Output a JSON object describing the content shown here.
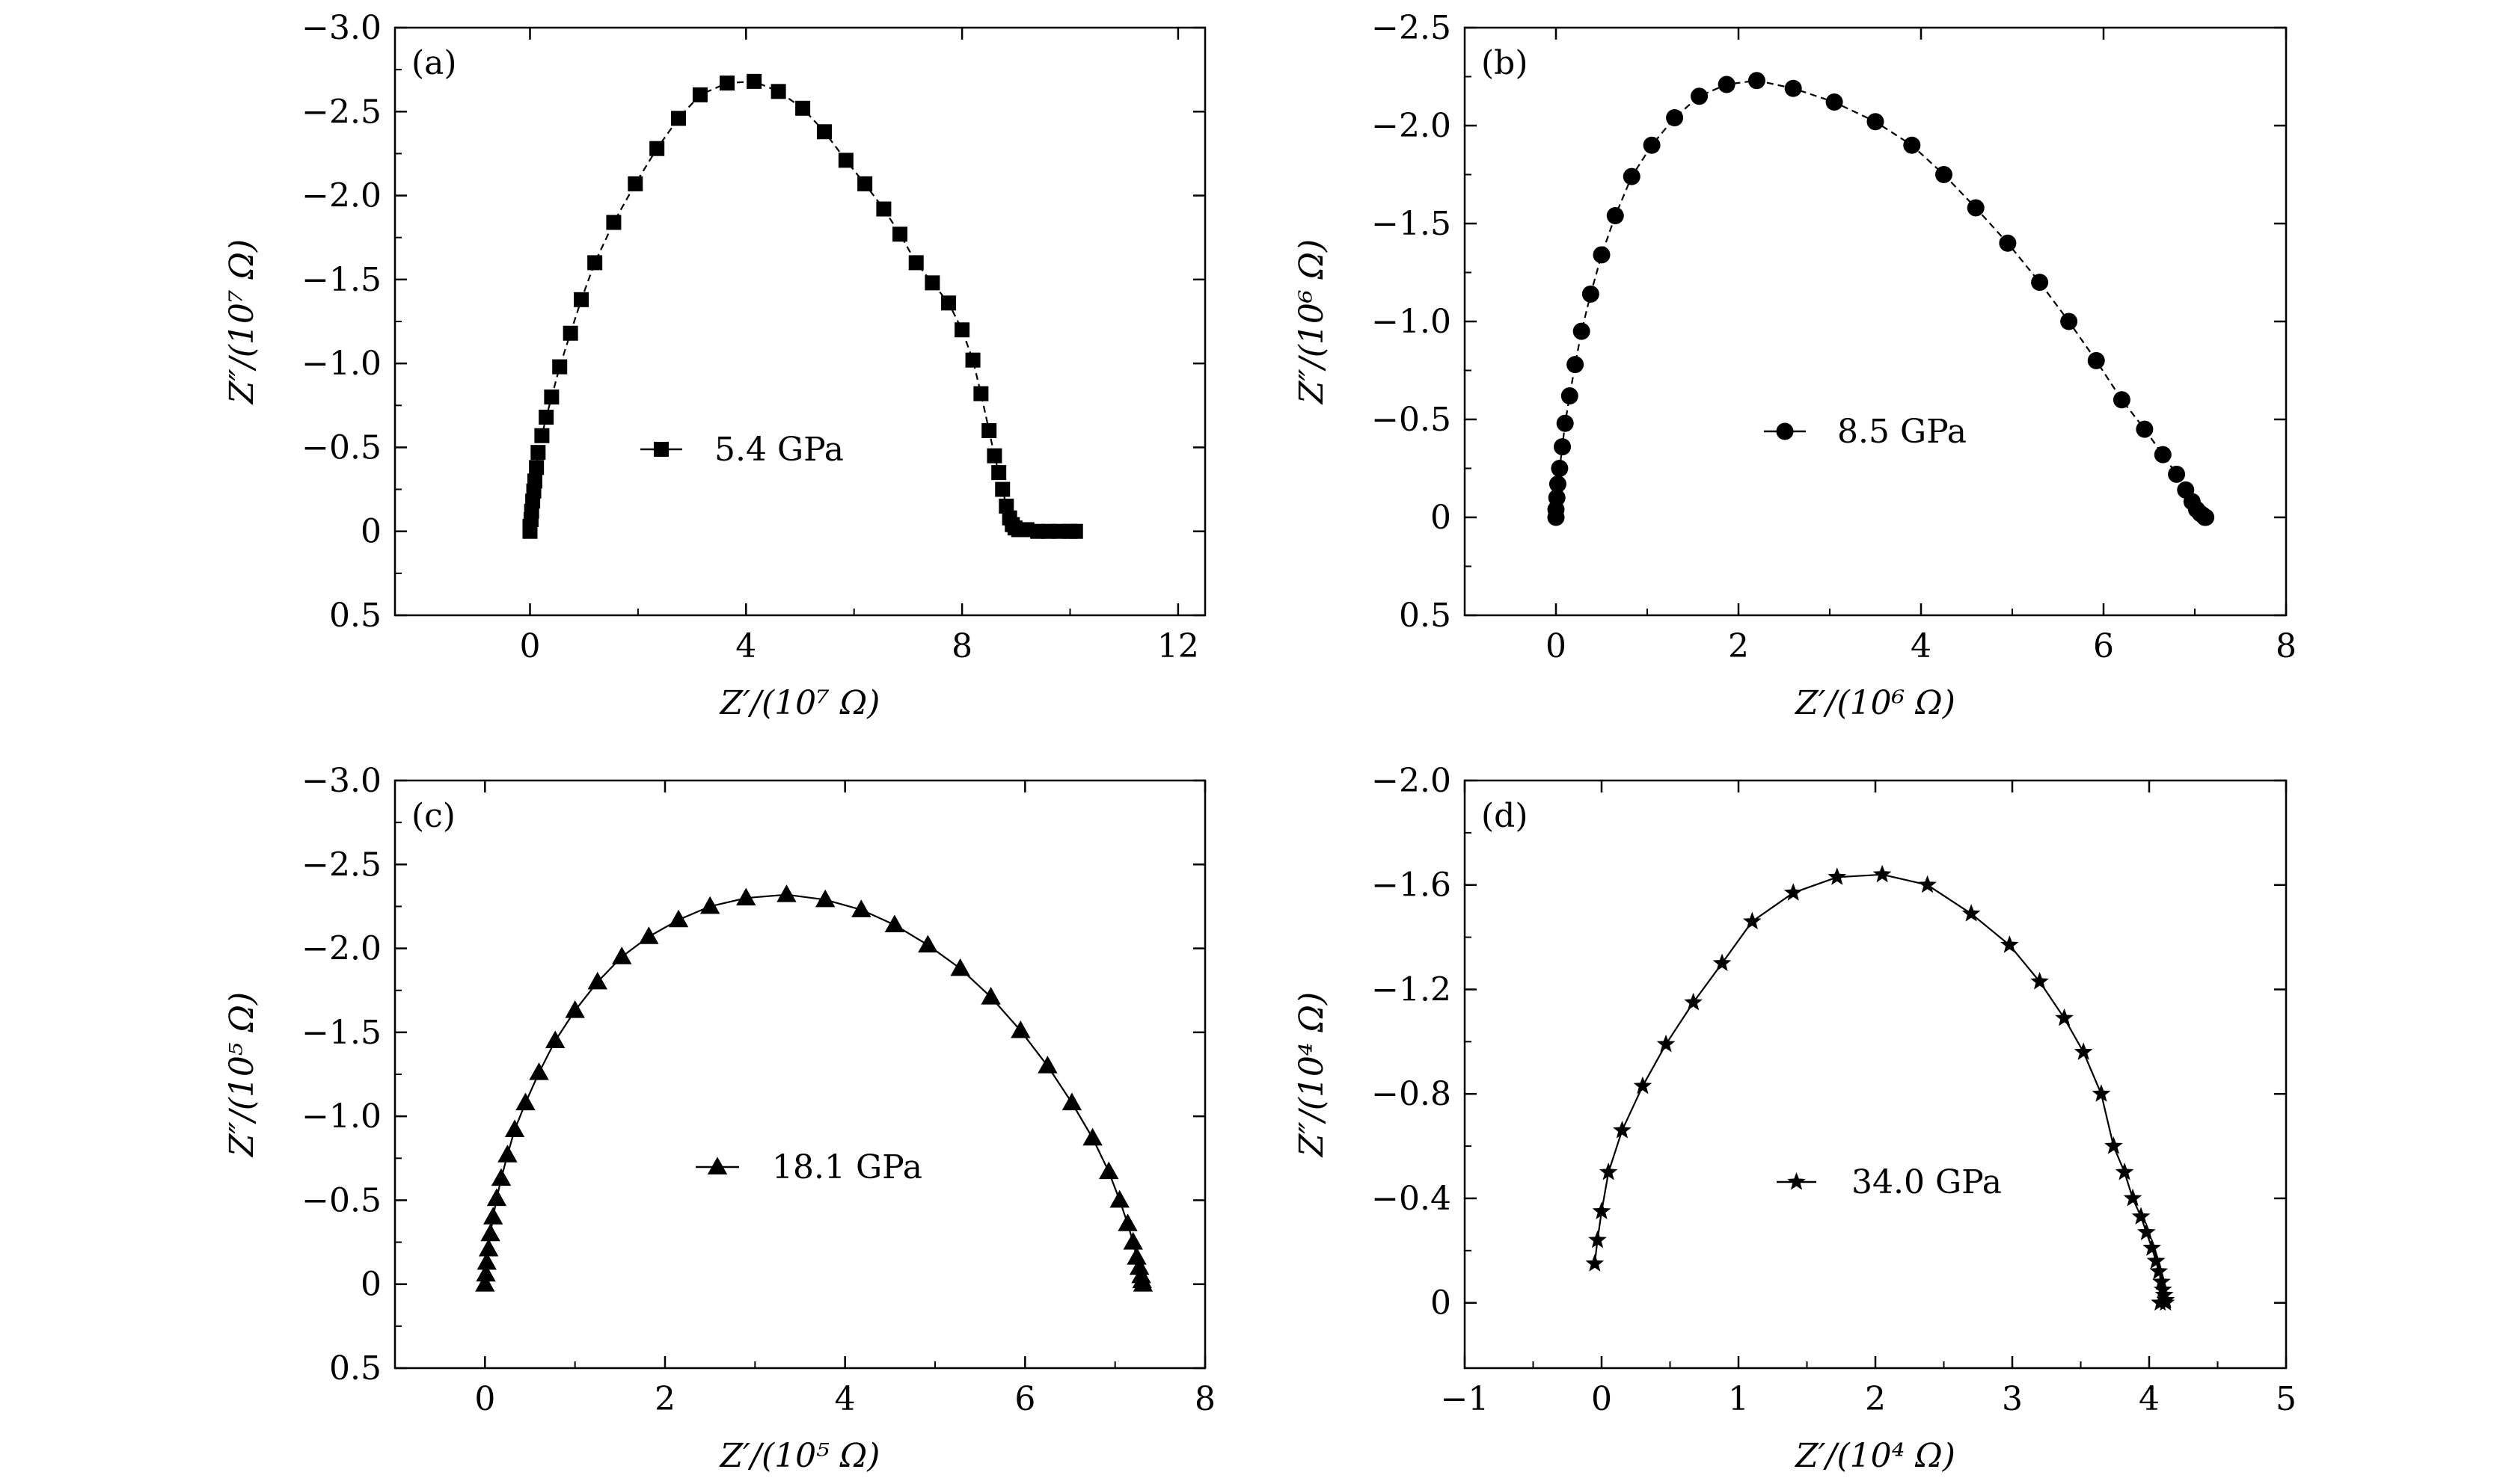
{
  "chart_data": [
    {
      "type": "scatter",
      "panel_label": "(a)",
      "marker": "square",
      "line_style": "dashed",
      "legend_position": "center",
      "xlabel": "Z′/(10⁷ Ω)",
      "ylabel": "Z″/(10⁷ Ω)",
      "xlim": [
        -2.5,
        12.5
      ],
      "ylim": [
        0.5,
        -3.0
      ],
      "xticks": [
        0,
        4,
        8,
        12
      ],
      "yticks": [
        -3.0,
        -2.5,
        -2.0,
        -1.5,
        -1.0,
        -0.5,
        0,
        0.5
      ],
      "xtick_labels": [
        "0",
        "4",
        "8",
        "12"
      ],
      "ytick_labels": [
        "−3.0",
        "−2.5",
        "−2.0",
        "−1.5",
        "−1.0",
        "−0.5",
        "0",
        "0.5"
      ],
      "series": [
        {
          "name": "5.4 GPa",
          "x": [
            0.0,
            0.0,
            0.02,
            0.03,
            0.05,
            0.07,
            0.09,
            0.12,
            0.15,
            0.22,
            0.3,
            0.4,
            0.55,
            0.75,
            0.95,
            1.2,
            1.55,
            1.95,
            2.35,
            2.75,
            3.15,
            3.65,
            4.15,
            4.6,
            5.05,
            5.45,
            5.85,
            6.2,
            6.55,
            6.85,
            7.15,
            7.45,
            7.75,
            8.0,
            8.2,
            8.35,
            8.5,
            8.6,
            8.68,
            8.75,
            8.82,
            8.88,
            8.93,
            8.98,
            9.05,
            9.2,
            9.4,
            9.6,
            9.8,
            10.0,
            10.1
          ],
          "y": [
            0.0,
            -0.03,
            -0.07,
            -0.12,
            -0.18,
            -0.24,
            -0.3,
            -0.38,
            -0.47,
            -0.57,
            -0.68,
            -0.8,
            -0.98,
            -1.18,
            -1.38,
            -1.6,
            -1.84,
            -2.07,
            -2.28,
            -2.46,
            -2.6,
            -2.67,
            -2.68,
            -2.62,
            -2.52,
            -2.38,
            -2.21,
            -2.07,
            -1.92,
            -1.77,
            -1.6,
            -1.48,
            -1.36,
            -1.2,
            -1.02,
            -0.82,
            -0.6,
            -0.45,
            -0.35,
            -0.25,
            -0.15,
            -0.08,
            -0.04,
            -0.02,
            -0.01,
            -0.01,
            0.0,
            0.0,
            0.0,
            0.0,
            0.0
          ]
        }
      ]
    },
    {
      "type": "scatter",
      "panel_label": "(b)",
      "marker": "circle",
      "line_style": "dashed",
      "legend_position": "center",
      "xlabel": "Z′/(10⁶ Ω)",
      "ylabel": "Z″/(10⁶ Ω)",
      "xlim": [
        -1.0,
        8.0
      ],
      "ylim": [
        0.5,
        -2.5
      ],
      "xticks": [
        0,
        2,
        4,
        6,
        8
      ],
      "yticks": [
        -2.5,
        -2.0,
        -1.5,
        -1.0,
        -0.5,
        0,
        0.5
      ],
      "xtick_labels": [
        "0",
        "2",
        "4",
        "6",
        "8"
      ],
      "ytick_labels": [
        "−2.5",
        "−2.0",
        "−1.5",
        "−1.0",
        "−0.5",
        "0",
        "0.5"
      ],
      "series": [
        {
          "name": "8.5 GPa",
          "x": [
            0.0,
            0.0,
            0.01,
            0.02,
            0.04,
            0.07,
            0.1,
            0.15,
            0.21,
            0.28,
            0.38,
            0.5,
            0.65,
            0.83,
            1.05,
            1.3,
            1.57,
            1.87,
            2.2,
            2.6,
            3.05,
            3.5,
            3.9,
            4.25,
            4.6,
            4.95,
            5.3,
            5.62,
            5.92,
            6.2,
            6.45,
            6.65,
            6.8,
            6.9,
            6.97,
            7.02,
            7.06,
            7.09,
            7.11,
            7.12
          ],
          "y": [
            0.0,
            -0.04,
            -0.1,
            -0.17,
            -0.25,
            -0.36,
            -0.48,
            -0.62,
            -0.78,
            -0.95,
            -1.14,
            -1.34,
            -1.54,
            -1.74,
            -1.9,
            -2.04,
            -2.15,
            -2.21,
            -2.23,
            -2.19,
            -2.12,
            -2.02,
            -1.9,
            -1.75,
            -1.58,
            -1.4,
            -1.2,
            -1.0,
            -0.8,
            -0.6,
            -0.45,
            -0.32,
            -0.22,
            -0.14,
            -0.08,
            -0.04,
            -0.02,
            -0.01,
            0.0,
            0.0
          ]
        }
      ]
    },
    {
      "type": "scatter",
      "panel_label": "(c)",
      "marker": "triangle",
      "line_style": "solid",
      "legend_position": "center",
      "xlabel": "Z′/(10⁵ Ω)",
      "ylabel": "Z″/(10⁵ Ω)",
      "xlim": [
        -1.0,
        8.0
      ],
      "ylim": [
        0.5,
        -3.0
      ],
      "xticks": [
        0,
        2,
        4,
        6,
        8
      ],
      "yticks": [
        -3.0,
        -2.5,
        -2.0,
        -1.5,
        -1.0,
        -0.5,
        0,
        0.5
      ],
      "xtick_labels": [
        "0",
        "2",
        "4",
        "6",
        "8"
      ],
      "ytick_labels": [
        "−3.0",
        "−2.5",
        "−2.0",
        "−1.5",
        "−1.0",
        "−0.5",
        "0",
        "0.5"
      ],
      "series": [
        {
          "name": "18.1 GPa",
          "x": [
            0.0,
            0.01,
            0.02,
            0.04,
            0.06,
            0.09,
            0.13,
            0.18,
            0.25,
            0.33,
            0.45,
            0.6,
            0.78,
            1.0,
            1.25,
            1.52,
            1.82,
            2.15,
            2.5,
            2.9,
            3.35,
            3.78,
            4.18,
            4.55,
            4.92,
            5.28,
            5.62,
            5.95,
            6.25,
            6.52,
            6.75,
            6.93,
            7.05,
            7.14,
            7.2,
            7.24,
            7.27,
            7.29,
            7.3,
            7.31
          ],
          "y": [
            0.0,
            -0.06,
            -0.13,
            -0.21,
            -0.3,
            -0.4,
            -0.51,
            -0.63,
            -0.77,
            -0.92,
            -1.08,
            -1.26,
            -1.45,
            -1.63,
            -1.8,
            -1.95,
            -2.07,
            -2.17,
            -2.25,
            -2.3,
            -2.32,
            -2.29,
            -2.23,
            -2.14,
            -2.02,
            -1.88,
            -1.71,
            -1.51,
            -1.3,
            -1.08,
            -0.87,
            -0.67,
            -0.5,
            -0.36,
            -0.25,
            -0.16,
            -0.1,
            -0.05,
            -0.02,
            0.0
          ]
        }
      ]
    },
    {
      "type": "scatter",
      "panel_label": "(d)",
      "marker": "star",
      "line_style": "solid",
      "legend_position": "center",
      "xlabel": "Z′/(10⁴ Ω)",
      "ylabel": "Z″/(10⁴ Ω)",
      "xlim": [
        -1.0,
        5.0
      ],
      "ylim": [
        0.25,
        -2.0
      ],
      "xticks": [
        -1,
        0,
        1,
        2,
        3,
        4,
        5
      ],
      "yticks": [
        -2.0,
        -1.6,
        -1.2,
        -0.8,
        -0.4,
        0
      ],
      "xtick_labels": [
        "−1",
        "0",
        "1",
        "2",
        "3",
        "4",
        "5"
      ],
      "ytick_labels": [
        "−2.0",
        "−1.6",
        "−1.2",
        "−0.8",
        "−0.4",
        "0"
      ],
      "series": [
        {
          "name": "34.0 GPa",
          "x": [
            -0.05,
            -0.03,
            0.0,
            0.05,
            0.15,
            0.3,
            0.47,
            0.67,
            0.88,
            1.1,
            1.4,
            1.72,
            2.05,
            2.38,
            2.7,
            2.98,
            3.2,
            3.38,
            3.52,
            3.65,
            3.74,
            3.82,
            3.88,
            3.94,
            3.98,
            4.02,
            4.05,
            4.07,
            4.09,
            4.1,
            4.11,
            4.12,
            4.12,
            4.08
          ],
          "y": [
            -0.15,
            -0.24,
            -0.35,
            -0.5,
            -0.66,
            -0.83,
            -0.99,
            -1.15,
            -1.3,
            -1.46,
            -1.57,
            -1.63,
            -1.64,
            -1.6,
            -1.49,
            -1.37,
            -1.23,
            -1.09,
            -0.96,
            -0.8,
            -0.6,
            -0.5,
            -0.4,
            -0.33,
            -0.27,
            -0.21,
            -0.16,
            -0.12,
            -0.08,
            -0.05,
            -0.03,
            -0.01,
            0.0,
            0.0
          ]
        }
      ]
    }
  ]
}
